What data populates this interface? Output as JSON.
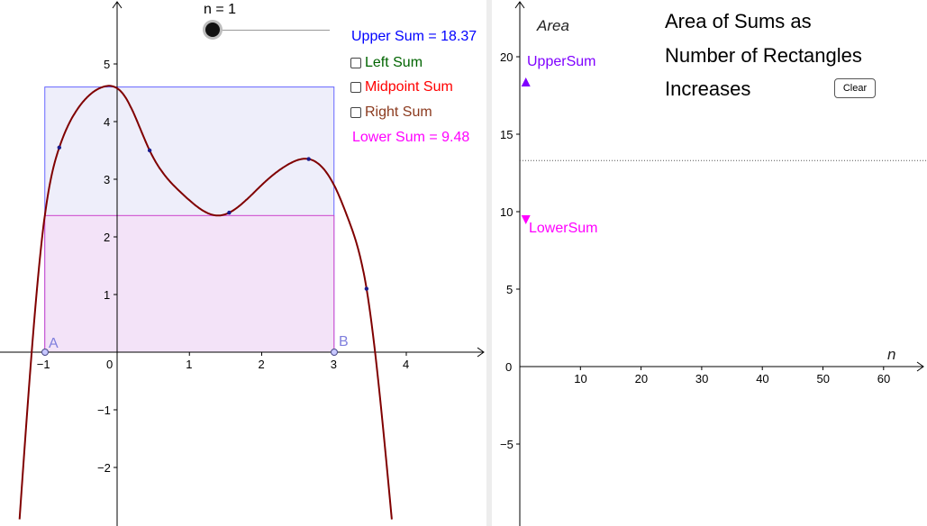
{
  "left_panel": {
    "slider": {
      "label": "n = 1",
      "value": 1
    },
    "upper_sum": {
      "text": "Upper Sum = 18.37",
      "color": "#0000ff"
    },
    "lower_sum": {
      "text": "Lower Sum = 9.48",
      "color": "#ff00ff"
    },
    "checkboxes": [
      {
        "label": "Left Sum",
        "checked": false,
        "color": "#006400"
      },
      {
        "label": "Midpoint Sum",
        "checked": false,
        "color": "#ff0000"
      },
      {
        "label": "Right Sum",
        "checked": false,
        "color": "#8b3a1e"
      }
    ],
    "points": {
      "a": "A",
      "b": "B"
    },
    "x_ticks": [
      "−1",
      "0",
      "1",
      "2",
      "3",
      "4"
    ],
    "y_ticks": [
      "5",
      "4",
      "3",
      "2",
      "1",
      "−1",
      "−2"
    ],
    "upper_rect": {
      "x_from": -1,
      "x_to": 3,
      "height": 4.6,
      "fill": "#eeeefa",
      "stroke": "#6666ff"
    },
    "lower_rect": {
      "x_from": -1,
      "x_to": 3,
      "height": 2.37,
      "fill": "#f3e3f8",
      "stroke": "#cc44cc"
    },
    "curve_color": "#800000"
  },
  "right_panel": {
    "title_lines": [
      "Area of Sums as",
      "Number of Rectangles",
      "Increases"
    ],
    "clear_button": "Clear",
    "y_axis_label": "Area",
    "x_axis_label": "n",
    "x_ticks": [
      "10",
      "20",
      "30",
      "40",
      "50",
      "60"
    ],
    "y_ticks": [
      "20",
      "15",
      "10",
      "5",
      "0",
      "−5"
    ],
    "upper_marker": {
      "label": "UpperSum",
      "n": 1,
      "value": 18.37,
      "color": "#7f00ff"
    },
    "lower_marker": {
      "label": "LowerSum",
      "n": 1,
      "value": 9.48,
      "color": "#ff00ff"
    },
    "dotted_line_value": 13.3
  }
}
